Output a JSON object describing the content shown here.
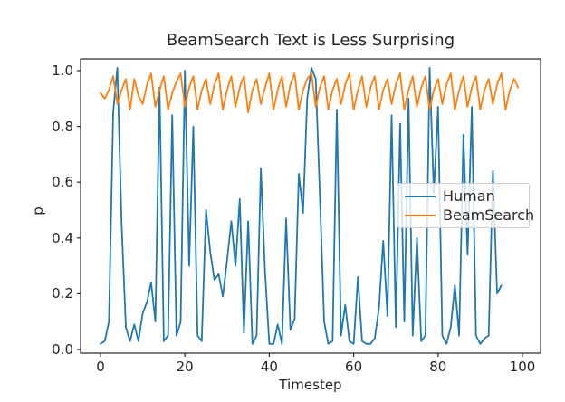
{
  "chart_data": {
    "type": "line",
    "title": "BeamSearch Text is Less Surprising",
    "xlabel": "Timestep",
    "ylabel": "p",
    "xlim": [
      -5,
      105
    ],
    "ylim": [
      -0.02,
      1.05
    ],
    "xticks": [
      0,
      20,
      40,
      60,
      80,
      100
    ],
    "yticks": [
      0.0,
      0.2,
      0.4,
      0.6,
      0.8,
      1.0
    ],
    "grid": false,
    "legend_position": "center right",
    "x_step": 1,
    "series": [
      {
        "name": "Human",
        "id": "human",
        "color": "#1f77b4",
        "x_start": 0,
        "values": [
          0.02,
          0.03,
          0.1,
          0.85,
          1.01,
          0.45,
          0.08,
          0.03,
          0.09,
          0.03,
          0.13,
          0.17,
          0.24,
          0.1,
          0.94,
          0.03,
          0.05,
          0.84,
          0.05,
          0.1,
          1.0,
          0.3,
          0.8,
          0.05,
          0.03,
          0.5,
          0.35,
          0.25,
          0.27,
          0.19,
          0.32,
          0.46,
          0.3,
          0.54,
          0.06,
          0.46,
          0.02,
          0.05,
          0.65,
          0.28,
          0.02,
          0.02,
          0.09,
          0.02,
          0.47,
          0.07,
          0.11,
          0.63,
          0.49,
          0.9,
          1.01,
          0.97,
          0.55,
          0.1,
          0.02,
          0.03,
          0.86,
          0.05,
          0.16,
          0.03,
          0.02,
          0.26,
          0.03,
          0.02,
          0.02,
          0.04,
          0.15,
          0.39,
          0.12,
          0.84,
          0.08,
          0.81,
          0.1,
          0.9,
          0.05,
          0.4,
          0.03,
          0.05,
          1.01,
          0.56,
          0.87,
          0.05,
          0.02,
          0.08,
          0.23,
          0.05,
          0.77,
          0.34,
          0.87,
          0.05,
          0.02,
          0.04,
          0.05,
          0.64,
          0.2,
          0.23
        ]
      },
      {
        "name": "BeamSearch",
        "id": "beamsearch",
        "color": "#ff7f0e",
        "x_start": 0,
        "values": [
          0.92,
          0.9,
          0.93,
          0.98,
          0.88,
          0.93,
          0.97,
          0.86,
          0.97,
          0.91,
          0.88,
          0.95,
          0.99,
          0.87,
          0.93,
          0.98,
          0.86,
          0.92,
          0.96,
          0.99,
          0.87,
          0.94,
          0.98,
          0.86,
          0.93,
          0.97,
          0.88,
          0.95,
          0.99,
          0.86,
          0.93,
          0.98,
          0.87,
          0.94,
          0.98,
          0.85,
          0.93,
          0.97,
          0.88,
          0.94,
          0.99,
          0.86,
          0.93,
          0.98,
          0.87,
          0.95,
          0.99,
          0.86,
          0.93,
          0.97,
          0.99,
          0.87,
          0.94,
          0.98,
          0.86,
          0.93,
          0.97,
          0.88,
          0.95,
          0.99,
          0.86,
          0.93,
          0.98,
          0.87,
          0.94,
          0.98,
          0.86,
          0.93,
          0.97,
          0.88,
          0.95,
          0.99,
          0.86,
          0.93,
          0.98,
          0.87,
          0.94,
          0.98,
          0.86,
          0.93,
          0.97,
          0.88,
          0.95,
          0.99,
          0.86,
          0.93,
          0.98,
          0.87,
          0.94,
          0.98,
          0.86,
          0.93,
          0.97,
          0.88,
          0.95,
          0.99,
          0.86,
          0.93,
          0.97,
          0.94
        ]
      }
    ],
    "text_color": "#262626",
    "spine_color": "#262626",
    "background_color": "#ffffff"
  }
}
